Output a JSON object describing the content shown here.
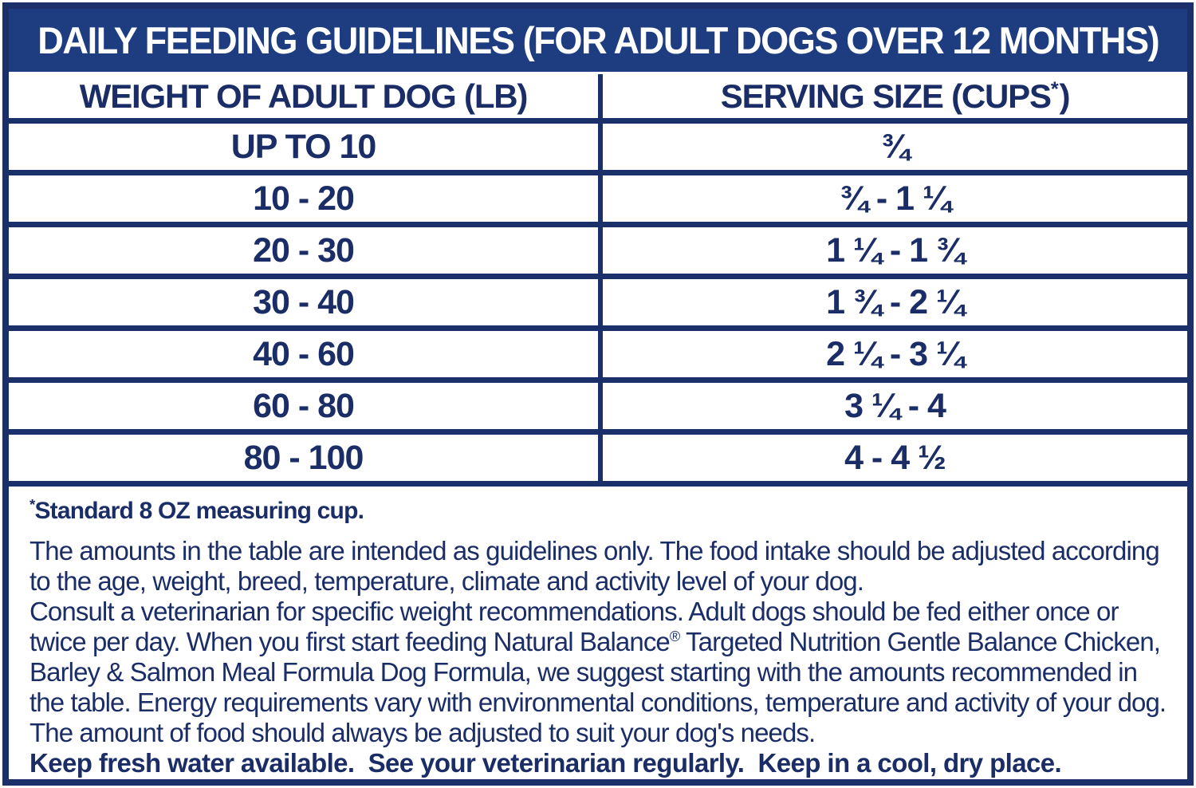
{
  "colors": {
    "navy_border": "#1b2f6a",
    "navy_header_bg": "#1e3c80",
    "navy_text": "#1b2d66",
    "background": "#ffffff"
  },
  "header": {
    "title": "DAILY FEEDING GUIDELINES (FOR ADULT DOGS OVER 12 MONTHS)"
  },
  "table": {
    "columns": {
      "weight_label": "WEIGHT OF ADULT DOG (LB)",
      "serving_label_pre": "SERVING SIZE (CUPS",
      "serving_label_sup": "*",
      "serving_label_post": ")"
    },
    "rows": [
      {
        "weight": "UP TO 10",
        "serving": "¾"
      },
      {
        "weight": "10 - 20",
        "serving": "¾ - 1 ¼"
      },
      {
        "weight": "20 - 30",
        "serving": "1 ¼ - 1 ¾"
      },
      {
        "weight": "30 - 40",
        "serving": "1 ¾ - 2 ¼"
      },
      {
        "weight": "40 - 60",
        "serving": "2 ¼ - 3 ¼"
      },
      {
        "weight": "60 - 80",
        "serving": "3 ¼ - 4"
      },
      {
        "weight": "80 - 100",
        "serving": "4 - 4 ½"
      }
    ]
  },
  "notes": {
    "footnote_sup": "*",
    "footnote_text": "Standard 8 OZ measuring cup.",
    "para1": "The amounts in the table are intended as guidelines only. The food intake should be adjusted according to the age, weight, breed, temperature, climate and activity level of your dog.",
    "para2_a": "Consult a veterinarian for specific weight recommendations. Adult dogs should be fed either once or twice per day. When you first start feeding Natural Balance",
    "para2_reg": "®",
    "para2_b": " Targeted Nutrition Gentle Balance Chicken, Barley & Salmon Meal Formula Dog Formula, we suggest starting with the amounts recommended in the table. Energy requirements vary with environmental conditions, temperature and activity of your dog. The amount of food should always be adjusted to suit your dog's needs.",
    "para2_bold": "Keep fresh water available.  See your veterinarian regularly.  Keep in a cool, dry place."
  }
}
